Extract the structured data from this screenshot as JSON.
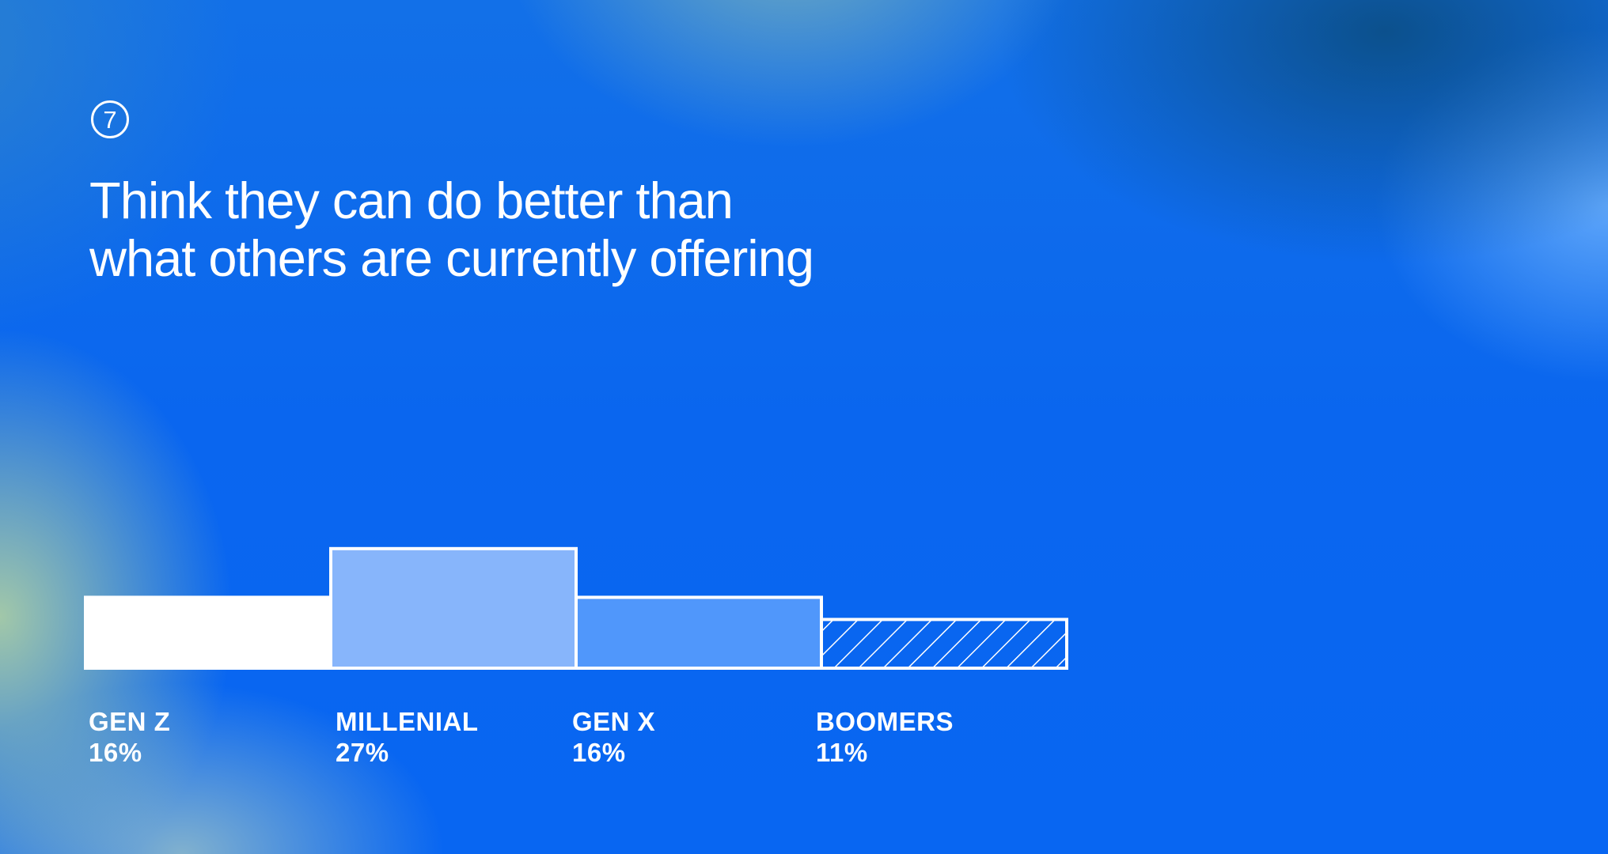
{
  "badge": "7",
  "title": {
    "line1": "Think they can do better than",
    "line2": "what others are currently offering"
  },
  "chart_data": {
    "type": "bar",
    "categories": [
      "GEN Z",
      "MILLENIAL",
      "GEN X",
      "BOOMERS"
    ],
    "values": [
      16,
      27,
      16,
      11
    ],
    "value_labels": [
      "16%",
      "27%",
      "16%",
      "11%"
    ],
    "value_unit": "%",
    "title": "",
    "xlabel": "",
    "ylabel": "",
    "grid": false,
    "legend": "none",
    "colors": {
      "bar_fills": [
        "#ffffff",
        "#87b5fb",
        "#5097fb",
        "hatch"
      ],
      "stroke": "#ffffff"
    }
  }
}
